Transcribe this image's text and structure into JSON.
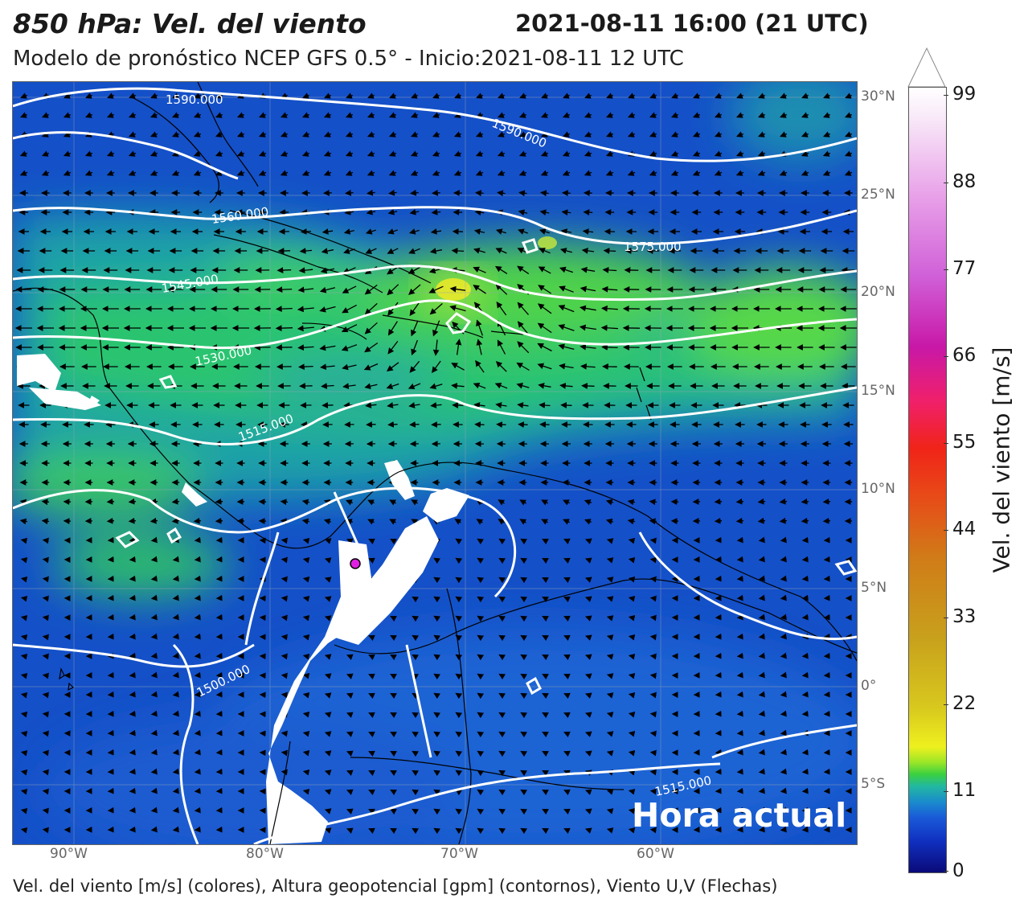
{
  "header": {
    "title": "850 hPa: Vel. del viento",
    "datetime": "2021-08-11 16:00 (21 UTC)",
    "subtitle": "Modelo de pronóstico NCEP GFS 0.5° - Inicio:2021-08-11 12 UTC"
  },
  "map": {
    "lat_labels": [
      "30°N",
      "25°N",
      "20°N",
      "15°N",
      "10°N",
      "5°N",
      "0°",
      "5°S"
    ],
    "lon_labels": [
      "90°W",
      "80°W",
      "70°W",
      "60°W"
    ],
    "contour_labels": [
      "1590.000",
      "1590.000",
      "1575.000",
      "1560.000",
      "1545.000",
      "1530.000",
      "1515.000",
      "1500.000",
      "1515.000"
    ],
    "overlay_label": "Hora actual",
    "marker_color": "#e020e0"
  },
  "colorbar": {
    "ticks": [
      "99",
      "88",
      "77",
      "66",
      "55",
      "44",
      "33",
      "22",
      "11",
      "0"
    ],
    "label": "Vel. del viento [m/s]"
  },
  "footer": "Vel. del viento [m/s] (colores), Altura geopotencial [gpm] (contornos), Viento U,V (Flechas)"
}
